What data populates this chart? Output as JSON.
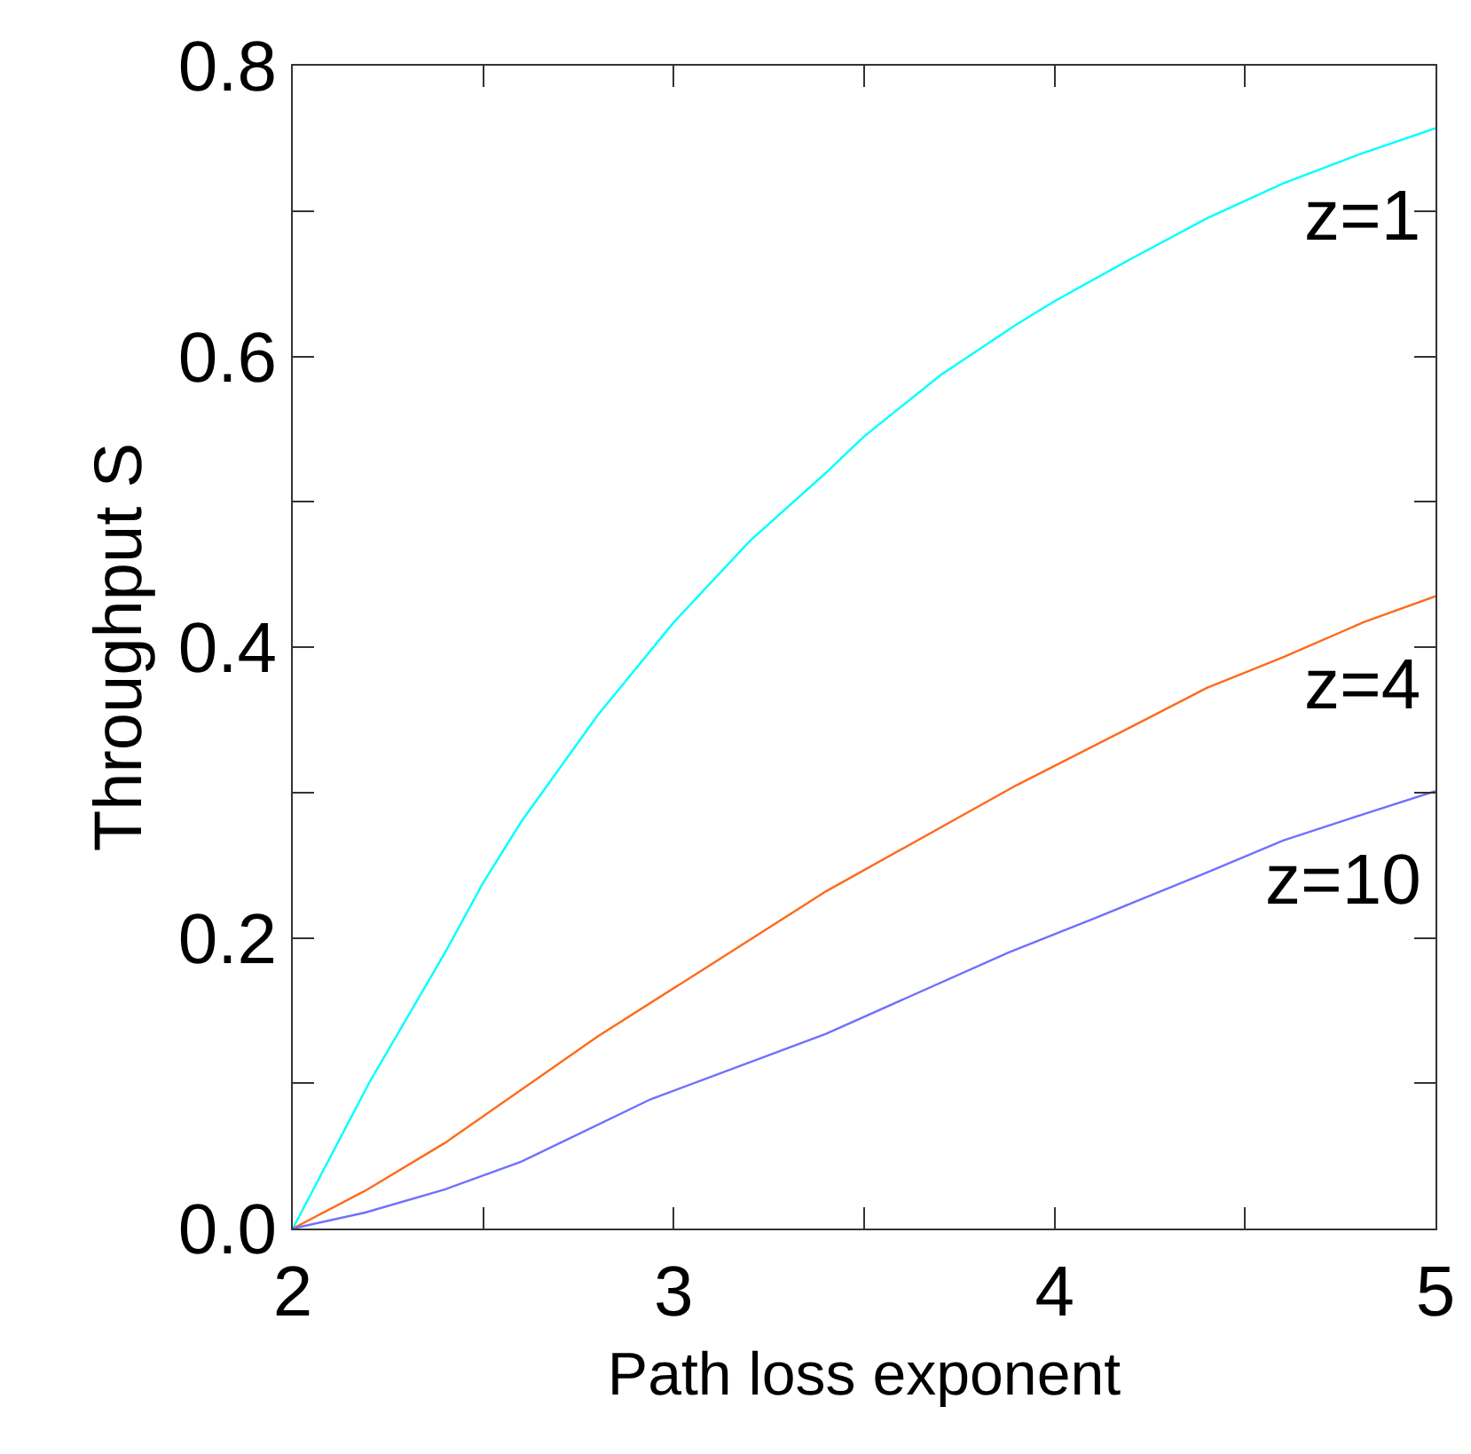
{
  "chart_data": {
    "type": "line",
    "xlabel": "Path loss exponent",
    "ylabel": "Throughput S",
    "xlim": [
      2,
      5
    ],
    "ylim": [
      0,
      0.8
    ],
    "xticks": [
      2,
      {
        "value": 2.5,
        "label": null
      },
      3,
      {
        "value": 3.5,
        "label": null
      },
      4,
      {
        "value": 4.5,
        "label": null
      },
      5
    ],
    "yticks": [
      {
        "value": 0,
        "label": "0.0"
      },
      {
        "value": 0.1,
        "label": null
      },
      0.2,
      {
        "value": 0.3,
        "label": null
      },
      0.4,
      {
        "value": 0.5,
        "label": null
      },
      0.6,
      {
        "value": 0.7,
        "label": null
      },
      0.8
    ],
    "grid": false,
    "legend": false,
    "series": [
      {
        "name": "z=1",
        "color": "#00ffff",
        "x": [
          2,
          2.2,
          2.4,
          2.5,
          2.6,
          2.8,
          3.0,
          3.2,
          3.4,
          3.5,
          3.7,
          3.9,
          4.0,
          4.2,
          4.4,
          4.6,
          4.8,
          5
        ],
        "values": [
          0,
          0.1,
          0.19,
          0.238,
          0.28,
          0.353,
          0.417,
          0.473,
          0.52,
          0.545,
          0.587,
          0.622,
          0.638,
          0.667,
          0.695,
          0.719,
          0.739,
          0.757
        ]
      },
      {
        "name": "z=4",
        "color": "#ff6a1a",
        "x": [
          2,
          2.19,
          2.4,
          2.8,
          3.07,
          3.4,
          3.9,
          4.2,
          4.4,
          4.6,
          4.81,
          5
        ],
        "values": [
          0,
          0.026,
          0.059,
          0.132,
          0.177,
          0.232,
          0.305,
          0.345,
          0.372,
          0.393,
          0.417,
          0.435
        ]
      },
      {
        "name": "z=10",
        "color": "#7070ff",
        "x": [
          2,
          2.19,
          2.4,
          2.6,
          2.94,
          3.4,
          3.88,
          4.11,
          4.4,
          4.6,
          4.81,
          5
        ],
        "values": [
          0,
          0.011,
          0.027,
          0.046,
          0.089,
          0.134,
          0.19,
          0.214,
          0.245,
          0.267,
          0.285,
          0.301
        ]
      }
    ]
  }
}
